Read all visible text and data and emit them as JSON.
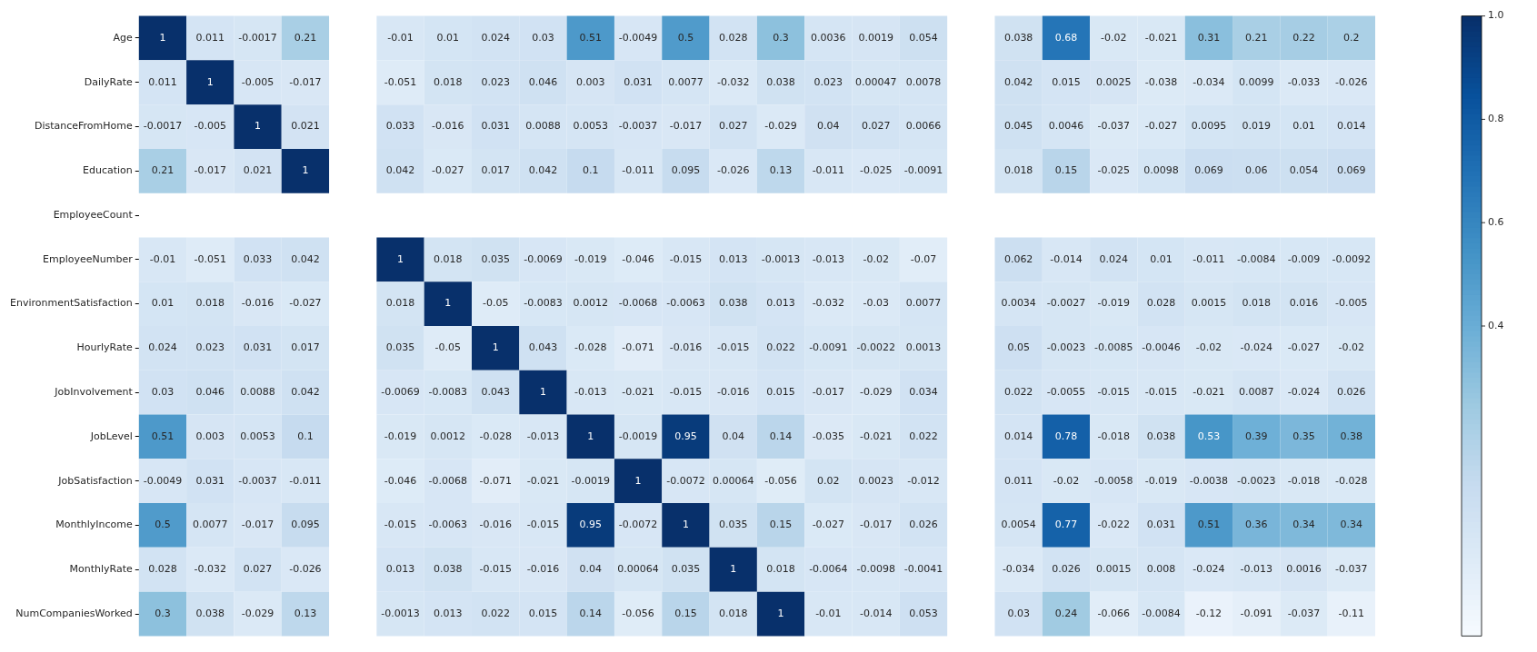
{
  "chart_data": {
    "type": "heatmap",
    "categories": [
      null,
      null,
      null,
      null,
      null,
      null,
      null,
      null,
      null,
      null,
      null,
      null,
      null,
      null,
      null,
      null,
      null,
      null,
      null,
      null,
      null,
      null,
      null,
      null,
      null,
      null
    ],
    "y_categories": [
      "Age",
      "DailyRate",
      "DistanceFromHome",
      "Education",
      "EmployeeCount",
      "EmployeeNumber",
      "EnvironmentSatisfaction",
      "HourlyRate",
      "JobInvolvement",
      "JobLevel",
      "JobSatisfaction",
      "MonthlyIncome",
      "MonthlyRate",
      "NumCompaniesWorked"
    ],
    "cells": [
      [
        1,
        0.011,
        -0.0017,
        0.21,
        null,
        -0.01,
        0.01,
        0.024,
        0.03,
        0.51,
        -0.0049,
        0.5,
        0.028,
        0.3,
        0.0036,
        0.0019,
        0.054,
        null,
        0.038,
        0.68,
        -0.02,
        -0.021,
        0.31,
        0.21,
        0.22,
        0.2
      ],
      [
        0.011,
        1,
        -0.005,
        -0.017,
        null,
        -0.051,
        0.018,
        0.023,
        0.046,
        0.003,
        0.031,
        0.0077,
        -0.032,
        0.038,
        0.023,
        0.00047,
        0.0078,
        null,
        0.042,
        0.015,
        0.0025,
        -0.038,
        -0.034,
        0.0099,
        -0.033,
        -0.026
      ],
      [
        -0.0017,
        -0.005,
        1,
        0.021,
        null,
        0.033,
        -0.016,
        0.031,
        0.0088,
        0.0053,
        -0.0037,
        -0.017,
        0.027,
        -0.029,
        0.04,
        0.027,
        0.0066,
        null,
        0.045,
        0.0046,
        -0.037,
        -0.027,
        0.0095,
        0.019,
        0.01,
        0.014
      ],
      [
        0.21,
        -0.017,
        0.021,
        1,
        null,
        0.042,
        -0.027,
        0.017,
        0.042,
        0.1,
        -0.011,
        0.095,
        -0.026,
        0.13,
        -0.011,
        -0.025,
        -0.0091,
        null,
        0.018,
        0.15,
        -0.025,
        0.0098,
        0.069,
        0.06,
        0.054,
        0.069
      ],
      [
        null,
        null,
        null,
        null,
        null,
        null,
        null,
        null,
        null,
        null,
        null,
        null,
        null,
        null,
        null,
        null,
        null,
        null,
        null,
        null,
        null,
        null,
        null,
        null,
        null,
        null
      ],
      [
        -0.01,
        -0.051,
        0.033,
        0.042,
        null,
        1,
        0.018,
        0.035,
        -0.0069,
        -0.019,
        -0.046,
        -0.015,
        0.013,
        -0.0013,
        -0.013,
        -0.02,
        -0.07,
        null,
        0.062,
        -0.014,
        0.024,
        0.01,
        -0.011,
        -0.0084,
        -0.009,
        -0.0092
      ],
      [
        0.01,
        0.018,
        -0.016,
        -0.027,
        null,
        0.018,
        1,
        -0.05,
        -0.0083,
        0.0012,
        -0.0068,
        -0.0063,
        0.038,
        0.013,
        -0.032,
        -0.03,
        0.0077,
        null,
        0.0034,
        -0.0027,
        -0.019,
        0.028,
        0.0015,
        0.018,
        0.016,
        -0.005
      ],
      [
        0.024,
        0.023,
        0.031,
        0.017,
        null,
        0.035,
        -0.05,
        1,
        0.043,
        -0.028,
        -0.071,
        -0.016,
        -0.015,
        0.022,
        -0.0091,
        -0.0022,
        0.0013,
        null,
        0.05,
        -0.0023,
        -0.0085,
        -0.0046,
        -0.02,
        -0.024,
        -0.027,
        -0.02
      ],
      [
        0.03,
        0.046,
        0.0088,
        0.042,
        null,
        -0.0069,
        -0.0083,
        0.043,
        1,
        -0.013,
        -0.021,
        -0.015,
        -0.016,
        0.015,
        -0.017,
        -0.029,
        0.034,
        null,
        0.022,
        -0.0055,
        -0.015,
        -0.015,
        -0.021,
        0.0087,
        -0.024,
        0.026
      ],
      [
        0.51,
        0.003,
        0.0053,
        0.1,
        null,
        -0.019,
        0.0012,
        -0.028,
        -0.013,
        1,
        -0.0019,
        0.95,
        0.04,
        0.14,
        -0.035,
        -0.021,
        0.022,
        null,
        0.014,
        0.78,
        -0.018,
        0.038,
        0.53,
        0.39,
        0.35,
        0.38
      ],
      [
        -0.0049,
        0.031,
        -0.0037,
        -0.011,
        null,
        -0.046,
        -0.0068,
        -0.071,
        -0.021,
        -0.0019,
        1,
        -0.0072,
        0.00064,
        -0.056,
        0.02,
        0.0023,
        -0.012,
        null,
        0.011,
        -0.02,
        -0.0058,
        -0.019,
        -0.0038,
        -0.0023,
        -0.018,
        -0.028
      ],
      [
        0.5,
        0.0077,
        -0.017,
        0.095,
        null,
        -0.015,
        -0.0063,
        -0.016,
        -0.015,
        0.95,
        -0.0072,
        1,
        0.035,
        0.15,
        -0.027,
        -0.017,
        0.026,
        null,
        0.0054,
        0.77,
        -0.022,
        0.031,
        0.51,
        0.36,
        0.34,
        0.34
      ],
      [
        0.028,
        -0.032,
        0.027,
        -0.026,
        null,
        0.013,
        0.038,
        -0.015,
        -0.016,
        0.04,
        0.00064,
        0.035,
        1,
        0.018,
        -0.0064,
        -0.0098,
        -0.0041,
        null,
        -0.034,
        0.026,
        0.0015,
        0.008,
        -0.024,
        -0.013,
        0.0016,
        -0.037
      ],
      [
        0.3,
        0.038,
        -0.029,
        0.13,
        null,
        -0.0013,
        0.013,
        0.022,
        0.015,
        0.14,
        -0.056,
        0.15,
        0.018,
        1,
        -0.01,
        -0.014,
        0.053,
        null,
        0.03,
        0.24,
        -0.066,
        -0.0084,
        -0.12,
        -0.091,
        -0.037,
        -0.11
      ]
    ],
    "clim": [
      -0.2,
      1
    ],
    "cticks": [
      {
        "value": 0.4,
        "label": "0.4"
      },
      {
        "value": 0.6,
        "label": "0.6"
      },
      {
        "value": 0.8,
        "label": "0.8"
      },
      {
        "value": 1,
        "label": "1.0"
      }
    ],
    "data_labels": true
  }
}
